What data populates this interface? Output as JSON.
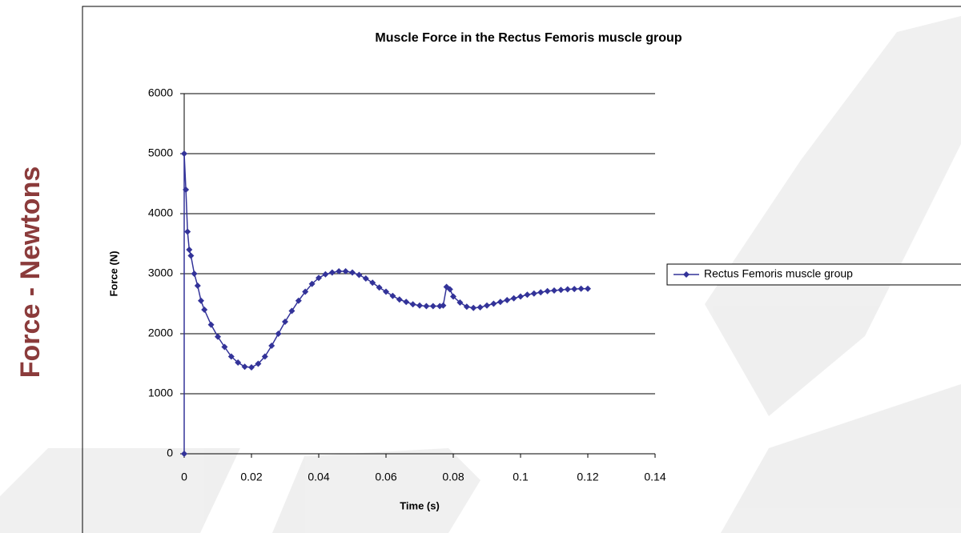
{
  "slide_label": "Force - Newtons",
  "chart_data": {
    "type": "line",
    "title": "Muscle Force in the Rectus Femoris muscle group",
    "x_label": "Time (s)",
    "y_label": "Force (N)",
    "x": [
      0,
      0,
      0.0005,
      0.001,
      0.0015,
      0.002,
      0.003,
      0.004,
      0.005,
      0.006,
      0.008,
      0.01,
      0.012,
      0.014,
      0.016,
      0.018,
      0.02,
      0.022,
      0.024,
      0.026,
      0.028,
      0.03,
      0.032,
      0.034,
      0.036,
      0.038,
      0.04,
      0.042,
      0.044,
      0.046,
      0.048,
      0.05,
      0.052,
      0.054,
      0.056,
      0.058,
      0.06,
      0.062,
      0.064,
      0.066,
      0.068,
      0.07,
      0.072,
      0.074,
      0.076,
      0.077,
      0.078,
      0.079,
      0.08,
      0.082,
      0.084,
      0.086,
      0.088,
      0.09,
      0.092,
      0.094,
      0.096,
      0.098,
      0.1,
      0.102,
      0.104,
      0.106,
      0.108,
      0.11,
      0.112,
      0.114,
      0.116,
      0.118,
      0.12
    ],
    "series": [
      {
        "name": "Rectus Femoris muscle group",
        "color": "#333399",
        "values": [
          0,
          5000,
          4400,
          3700,
          3400,
          3300,
          3000,
          2800,
          2550,
          2400,
          2150,
          1950,
          1780,
          1620,
          1520,
          1450,
          1440,
          1500,
          1620,
          1800,
          2000,
          2200,
          2380,
          2550,
          2700,
          2830,
          2930,
          2990,
          3020,
          3040,
          3040,
          3020,
          2980,
          2920,
          2850,
          2770,
          2700,
          2630,
          2570,
          2530,
          2490,
          2470,
          2460,
          2460,
          2460,
          2470,
          2780,
          2740,
          2620,
          2520,
          2450,
          2430,
          2440,
          2470,
          2500,
          2530,
          2560,
          2590,
          2620,
          2650,
          2670,
          2690,
          2710,
          2720,
          2730,
          2740,
          2745,
          2750,
          2750
        ]
      }
    ],
    "xlim": [
      0,
      0.14
    ],
    "xticks": [
      0,
      0.02,
      0.04,
      0.06,
      0.08,
      0.1,
      0.12,
      0.14
    ],
    "ylim": [
      0,
      6000
    ],
    "yticks": [
      0,
      1000,
      2000,
      3000,
      4000,
      5000,
      6000
    ],
    "grid": true,
    "legend": "right"
  }
}
